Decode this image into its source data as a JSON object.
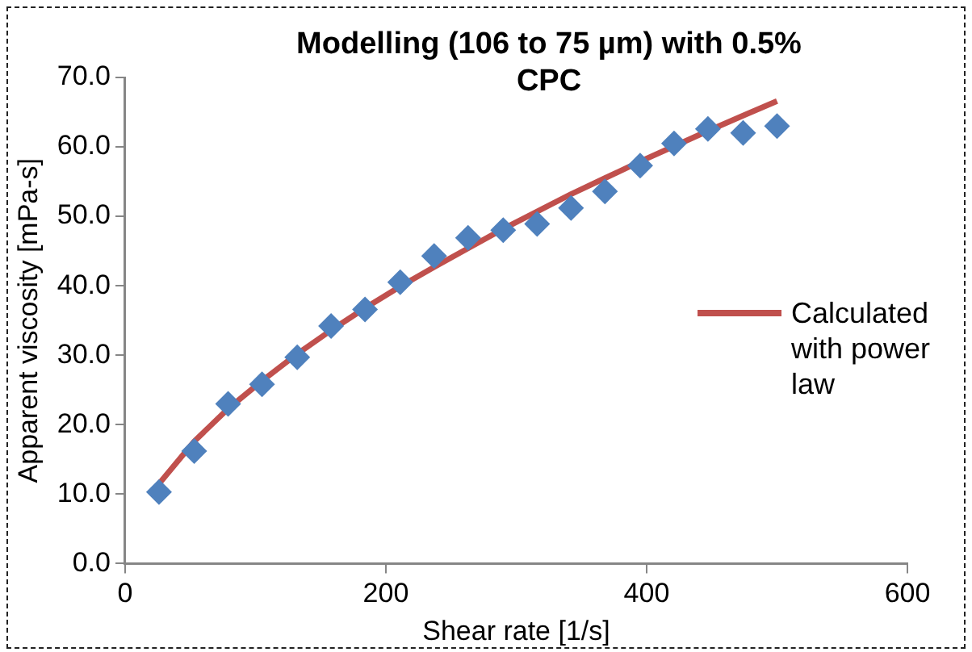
{
  "chart_data": {
    "type": "scatter",
    "title": "Modelling (106 to 75 µm) with 0.5% CPC",
    "xlabel": "Shear rate [1/s]",
    "ylabel": "Apparent viscosity [mPa-s]",
    "x": [
      26,
      53,
      79,
      105,
      132,
      158,
      184,
      211,
      237,
      263,
      290,
      316,
      342,
      368,
      395,
      421,
      447,
      474,
      500
    ],
    "series": [
      {
        "color": "#4f81bd",
        "marker": "diamond",
        "values": [
          10.3,
          16.2,
          23.0,
          25.8,
          29.7,
          34.2,
          36.6,
          40.5,
          44.3,
          46.9,
          48.0,
          48.9,
          51.2,
          53.6,
          57.3,
          60.5,
          62.6,
          62.0,
          63.0
        ]
      },
      {
        "type": "line",
        "name": "Calculated with power law",
        "color": "#c0504d",
        "marker": "none",
        "values": [
          11.5,
          17.6,
          22.3,
          26.3,
          30.2,
          33.6,
          36.8,
          39.9,
          42.7,
          45.4,
          48.2,
          50.7,
          53.2,
          55.5,
          57.9,
          60.1,
          62.3,
          64.5,
          66.6
        ]
      }
    ],
    "xlim": [
      0,
      600
    ],
    "xticks": [
      0,
      200,
      400,
      600
    ],
    "ylim": [
      0,
      70
    ],
    "yticks": [
      {
        "value": 0,
        "label": "0.0"
      },
      {
        "value": 10,
        "label": "10.0"
      },
      {
        "value": 20,
        "label": "20.0"
      },
      {
        "value": 30,
        "label": "30.0"
      },
      {
        "value": 40,
        "label": "40.0"
      },
      {
        "value": 50,
        "label": "50.0"
      },
      {
        "value": 60,
        "label": "60.0"
      },
      {
        "value": 70,
        "label": "70.0"
      }
    ],
    "grid": false,
    "legend": "right"
  }
}
